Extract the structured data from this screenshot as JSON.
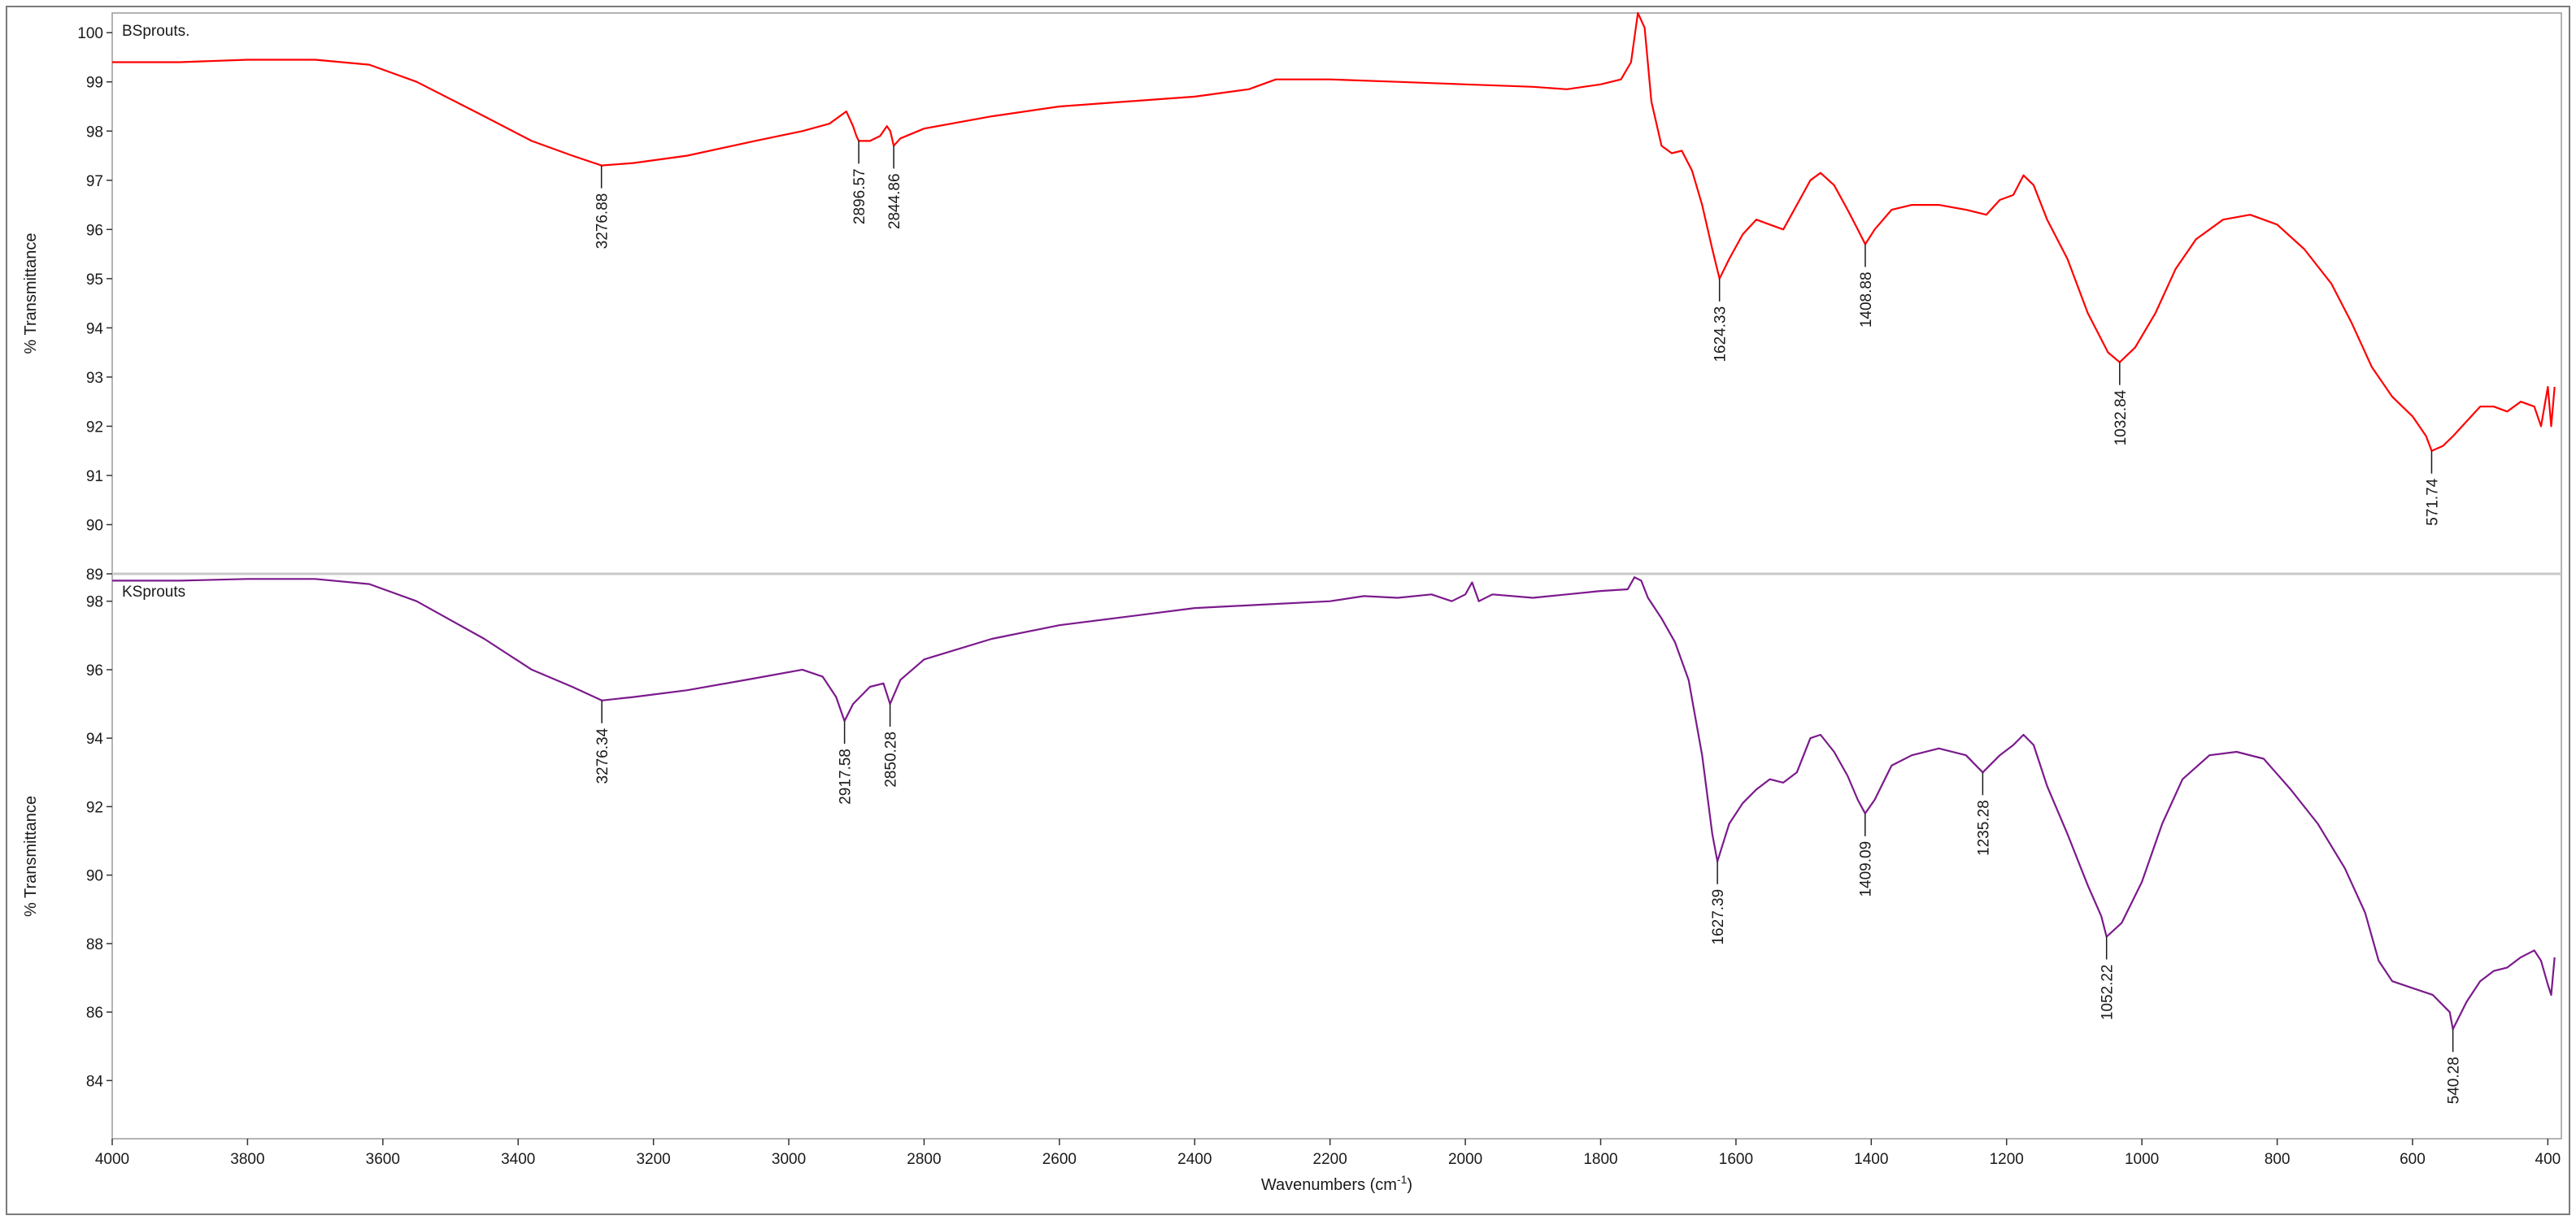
{
  "chart_data": {
    "type": "line",
    "xlabel": "Wavenumbers (cm",
    "xlabel_sup": "-1",
    "xlabel_end": ")",
    "xlim": [
      4000,
      380
    ],
    "x_ticks": [
      4000,
      3800,
      3600,
      3400,
      3200,
      3000,
      2800,
      2600,
      2400,
      2200,
      2000,
      1800,
      1600,
      1400,
      1200,
      1000,
      800,
      600,
      400
    ],
    "panels": [
      {
        "name": "BSprouts.",
        "color": "#ff0000",
        "ylabel": "% Transmittance",
        "ylim": [
          89,
          100.4
        ],
        "y_ticks": [
          89,
          90,
          91,
          92,
          93,
          94,
          95,
          96,
          97,
          98,
          99,
          100
        ],
        "points": [
          [
            4000,
            99.4
          ],
          [
            3900,
            99.4
          ],
          [
            3800,
            99.45
          ],
          [
            3700,
            99.45
          ],
          [
            3620,
            99.35
          ],
          [
            3550,
            99.0
          ],
          [
            3450,
            98.3
          ],
          [
            3380,
            97.8
          ],
          [
            3320,
            97.5
          ],
          [
            3276.88,
            97.3
          ],
          [
            3230,
            97.35
          ],
          [
            3150,
            97.5
          ],
          [
            3050,
            97.8
          ],
          [
            2980,
            98.0
          ],
          [
            2940,
            98.15
          ],
          [
            2915,
            98.4
          ],
          [
            2905,
            98.1
          ],
          [
            2900,
            97.9
          ],
          [
            2896.57,
            97.8
          ],
          [
            2880,
            97.8
          ],
          [
            2865,
            97.9
          ],
          [
            2855,
            98.1
          ],
          [
            2850,
            98.0
          ],
          [
            2844.86,
            97.7
          ],
          [
            2835,
            97.85
          ],
          [
            2800,
            98.05
          ],
          [
            2700,
            98.3
          ],
          [
            2600,
            98.5
          ],
          [
            2500,
            98.6
          ],
          [
            2400,
            98.7
          ],
          [
            2320,
            98.85
          ],
          [
            2280,
            99.05
          ],
          [
            2200,
            99.05
          ],
          [
            2100,
            99.0
          ],
          [
            2000,
            98.95
          ],
          [
            1900,
            98.9
          ],
          [
            1850,
            98.85
          ],
          [
            1800,
            98.95
          ],
          [
            1770,
            99.05
          ],
          [
            1755,
            99.4
          ],
          [
            1745,
            100.4
          ],
          [
            1735,
            100.1
          ],
          [
            1725,
            98.6
          ],
          [
            1710,
            97.7
          ],
          [
            1695,
            97.55
          ],
          [
            1680,
            97.6
          ],
          [
            1665,
            97.2
          ],
          [
            1650,
            96.5
          ],
          [
            1635,
            95.6
          ],
          [
            1624.33,
            95.0
          ],
          [
            1610,
            95.4
          ],
          [
            1590,
            95.9
          ],
          [
            1570,
            96.2
          ],
          [
            1550,
            96.1
          ],
          [
            1530,
            96.0
          ],
          [
            1510,
            96.5
          ],
          [
            1490,
            97.0
          ],
          [
            1475,
            97.15
          ],
          [
            1455,
            96.9
          ],
          [
            1435,
            96.4
          ],
          [
            1420,
            96.0
          ],
          [
            1408.88,
            95.7
          ],
          [
            1395,
            96.0
          ],
          [
            1370,
            96.4
          ],
          [
            1340,
            96.5
          ],
          [
            1300,
            96.5
          ],
          [
            1260,
            96.4
          ],
          [
            1230,
            96.3
          ],
          [
            1210,
            96.6
          ],
          [
            1190,
            96.7
          ],
          [
            1175,
            97.1
          ],
          [
            1160,
            96.9
          ],
          [
            1140,
            96.2
          ],
          [
            1110,
            95.4
          ],
          [
            1080,
            94.3
          ],
          [
            1050,
            93.5
          ],
          [
            1032.84,
            93.3
          ],
          [
            1010,
            93.6
          ],
          [
            980,
            94.3
          ],
          [
            950,
            95.2
          ],
          [
            920,
            95.8
          ],
          [
            880,
            96.2
          ],
          [
            840,
            96.3
          ],
          [
            800,
            96.1
          ],
          [
            760,
            95.6
          ],
          [
            720,
            94.9
          ],
          [
            690,
            94.1
          ],
          [
            660,
            93.2
          ],
          [
            630,
            92.6
          ],
          [
            600,
            92.2
          ],
          [
            580,
            91.8
          ],
          [
            571.74,
            91.5
          ],
          [
            555,
            91.6
          ],
          [
            540,
            91.8
          ],
          [
            520,
            92.1
          ],
          [
            500,
            92.4
          ],
          [
            480,
            92.4
          ],
          [
            460,
            92.3
          ],
          [
            440,
            92.5
          ],
          [
            420,
            92.4
          ],
          [
            410,
            92.0
          ],
          [
            400,
            92.8
          ],
          [
            395,
            92.0
          ],
          [
            390,
            92.8
          ]
        ],
        "peaks": [
          {
            "x": 3276.88,
            "label": "3276.88"
          },
          {
            "x": 2896.57,
            "label": "2896.57"
          },
          {
            "x": 2844.86,
            "label": "2844.86"
          },
          {
            "x": 1624.33,
            "label": "1624.33"
          },
          {
            "x": 1408.88,
            "label": "1408.88"
          },
          {
            "x": 1032.84,
            "label": "1032.84"
          },
          {
            "x": 571.74,
            "label": "571.74"
          }
        ]
      },
      {
        "name": "KSprouts",
        "color": "#7b1a8c",
        "ylabel": "% Transmittance",
        "ylim": [
          82.3,
          98.8
        ],
        "y_ticks": [
          84,
          86,
          88,
          90,
          92,
          94,
          96,
          98
        ],
        "points": [
          [
            4000,
            98.6
          ],
          [
            3900,
            98.6
          ],
          [
            3800,
            98.65
          ],
          [
            3700,
            98.65
          ],
          [
            3620,
            98.5
          ],
          [
            3550,
            98.0
          ],
          [
            3450,
            96.9
          ],
          [
            3380,
            96.0
          ],
          [
            3320,
            95.5
          ],
          [
            3276.34,
            95.1
          ],
          [
            3230,
            95.2
          ],
          [
            3150,
            95.4
          ],
          [
            3050,
            95.75
          ],
          [
            2980,
            96.0
          ],
          [
            2950,
            95.8
          ],
          [
            2930,
            95.2
          ],
          [
            2917.58,
            94.5
          ],
          [
            2905,
            95.0
          ],
          [
            2880,
            95.5
          ],
          [
            2860,
            95.6
          ],
          [
            2850.28,
            95.0
          ],
          [
            2835,
            95.7
          ],
          [
            2800,
            96.3
          ],
          [
            2700,
            96.9
          ],
          [
            2600,
            97.3
          ],
          [
            2500,
            97.55
          ],
          [
            2400,
            97.8
          ],
          [
            2300,
            97.9
          ],
          [
            2200,
            98.0
          ],
          [
            2150,
            98.15
          ],
          [
            2100,
            98.1
          ],
          [
            2050,
            98.2
          ],
          [
            2020,
            98.0
          ],
          [
            2000,
            98.2
          ],
          [
            1990,
            98.55
          ],
          [
            1980,
            98.0
          ],
          [
            1960,
            98.2
          ],
          [
            1900,
            98.1
          ],
          [
            1850,
            98.2
          ],
          [
            1800,
            98.3
          ],
          [
            1760,
            98.35
          ],
          [
            1750,
            98.7
          ],
          [
            1740,
            98.6
          ],
          [
            1730,
            98.1
          ],
          [
            1710,
            97.5
          ],
          [
            1690,
            96.8
          ],
          [
            1670,
            95.7
          ],
          [
            1650,
            93.5
          ],
          [
            1635,
            91.2
          ],
          [
            1627.39,
            90.4
          ],
          [
            1610,
            91.5
          ],
          [
            1590,
            92.1
          ],
          [
            1570,
            92.5
          ],
          [
            1550,
            92.8
          ],
          [
            1530,
            92.7
          ],
          [
            1510,
            93.0
          ],
          [
            1490,
            94.0
          ],
          [
            1475,
            94.1
          ],
          [
            1455,
            93.6
          ],
          [
            1435,
            92.9
          ],
          [
            1420,
            92.2
          ],
          [
            1409.09,
            91.8
          ],
          [
            1395,
            92.2
          ],
          [
            1370,
            93.2
          ],
          [
            1340,
            93.5
          ],
          [
            1300,
            93.7
          ],
          [
            1260,
            93.5
          ],
          [
            1235.28,
            93.0
          ],
          [
            1210,
            93.5
          ],
          [
            1190,
            93.8
          ],
          [
            1175,
            94.1
          ],
          [
            1160,
            93.8
          ],
          [
            1140,
            92.6
          ],
          [
            1110,
            91.2
          ],
          [
            1080,
            89.7
          ],
          [
            1060,
            88.8
          ],
          [
            1052.22,
            88.2
          ],
          [
            1030,
            88.6
          ],
          [
            1000,
            89.8
          ],
          [
            970,
            91.5
          ],
          [
            940,
            92.8
          ],
          [
            900,
            93.5
          ],
          [
            860,
            93.6
          ],
          [
            820,
            93.4
          ],
          [
            780,
            92.5
          ],
          [
            740,
            91.5
          ],
          [
            700,
            90.2
          ],
          [
            670,
            88.9
          ],
          [
            650,
            87.5
          ],
          [
            630,
            86.9
          ],
          [
            600,
            86.7
          ],
          [
            570,
            86.5
          ],
          [
            545,
            86.0
          ],
          [
            540.28,
            85.5
          ],
          [
            520,
            86.3
          ],
          [
            500,
            86.9
          ],
          [
            480,
            87.2
          ],
          [
            460,
            87.3
          ],
          [
            440,
            87.6
          ],
          [
            420,
            87.8
          ],
          [
            410,
            87.5
          ],
          [
            400,
            86.8
          ],
          [
            395,
            86.5
          ],
          [
            390,
            87.6
          ]
        ],
        "peaks": [
          {
            "x": 3276.34,
            "label": "3276.34"
          },
          {
            "x": 2917.58,
            "label": "2917.58"
          },
          {
            "x": 2850.28,
            "label": "2850.28"
          },
          {
            "x": 1627.39,
            "label": "1627.39"
          },
          {
            "x": 1409.09,
            "label": "1409.09"
          },
          {
            "x": 1235.28,
            "label": "1235.28"
          },
          {
            "x": 1052.22,
            "label": "1052.22"
          },
          {
            "x": 540.28,
            "label": "540.28"
          }
        ]
      }
    ]
  }
}
